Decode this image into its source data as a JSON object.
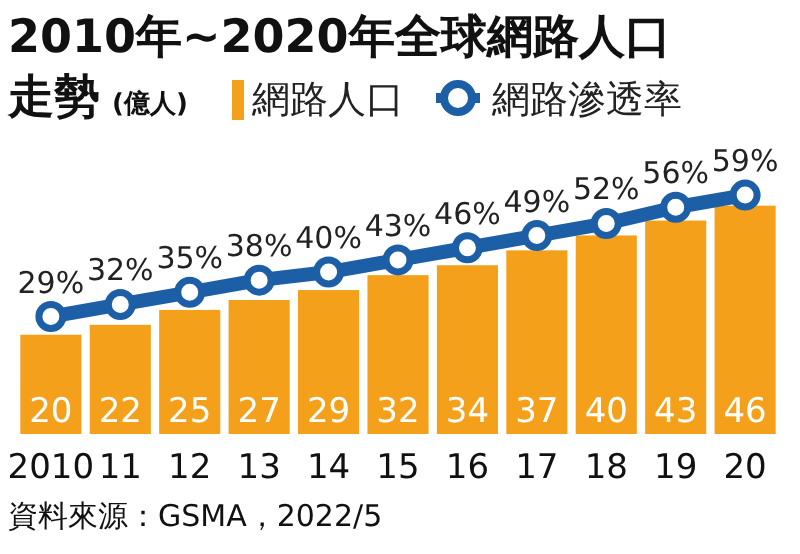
{
  "chart_data": {
    "type": "bar",
    "title": "2010年~2020年全球網路人口走勢",
    "categories": [
      "2010",
      "11",
      "12",
      "13",
      "14",
      "15",
      "16",
      "17",
      "18",
      "19",
      "20"
    ],
    "series": [
      {
        "name": "網路人口",
        "color": "#f5a01a",
        "values": [
          20,
          22,
          25,
          27,
          29,
          32,
          34,
          37,
          40,
          43,
          46
        ]
      },
      {
        "name": "網路滲透率",
        "type": "line",
        "axis": "y2",
        "color": "#1d5fa6",
        "marker": "circle",
        "values": [
          29,
          32,
          35,
          38,
          40,
          43,
          46,
          49,
          52,
          56,
          59
        ],
        "value_labels": [
          "29%",
          "32%",
          "35%",
          "38%",
          "40%",
          "43%",
          "46%",
          "49%",
          "52%",
          "56%",
          "59%"
        ]
      }
    ],
    "tick_labels": "x",
    "data_labels": true,
    "legend": "top",
    "grid": false,
    "annotations": [
      "(億人)",
      "資料來源：GSMA，2022/5"
    ]
  }
}
